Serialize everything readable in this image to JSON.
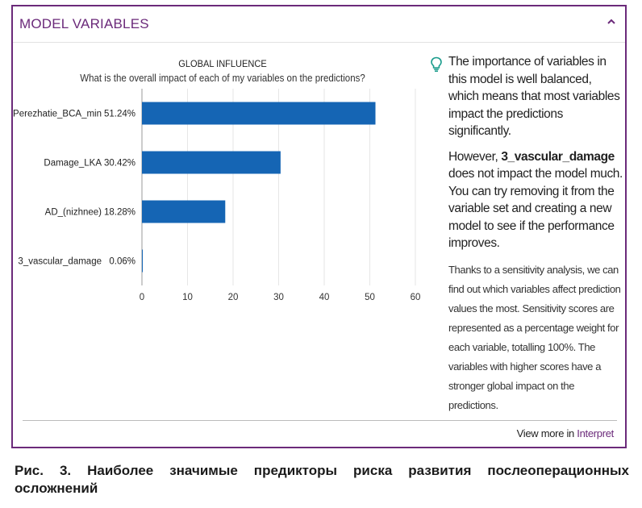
{
  "panel": {
    "title": "MODEL VARIABLES",
    "collapse_icon": "chevron-up-icon",
    "accent_color": "#6b2a7a"
  },
  "chart_data": {
    "type": "bar",
    "orientation": "horizontal",
    "title": "GLOBAL INFLUENCE",
    "subtitle": "What is the overall impact of each of my variables on the predictions?",
    "categories": [
      "Perezhatie_BCA_min",
      "Damage_LKA",
      "AD_(nizhnee)",
      "3_vascular_damage"
    ],
    "values": [
      51.24,
      30.42,
      18.28,
      0.06
    ],
    "value_labels": [
      "51.24%",
      "30.42%",
      "18.28%",
      "0.06%"
    ],
    "xlim": [
      0,
      60
    ],
    "xticks": [
      "0",
      "10",
      "20",
      "30",
      "40",
      "50",
      "60"
    ],
    "grid": true,
    "bar_color": "#1565b4"
  },
  "insight": {
    "icon": "lightbulb-icon",
    "p1": "The importance of variables in this model is well balanced, which means that most variables impact the predictions significantly.",
    "p2_prefix": "However, ",
    "p2_bold": "3_vascular_damage",
    "p2_suffix": " does not impact the model much. You can try removing it from the variable set and creating a new model to see if the performance improves.",
    "p3": "Thanks to a sensitivity analysis, we can find out which variables affect prediction values the most. Sensitivity scores are represented as a percentage weight for each variable, totalling 100%. The variables with higher scores have a stronger global impact on the predictions."
  },
  "footer": {
    "link_prefix": "View more in ",
    "link_accent": "Interpret"
  },
  "caption": "Рис. 3. Наиболее значимые предикторы риска развития послеоперационных осложнений"
}
